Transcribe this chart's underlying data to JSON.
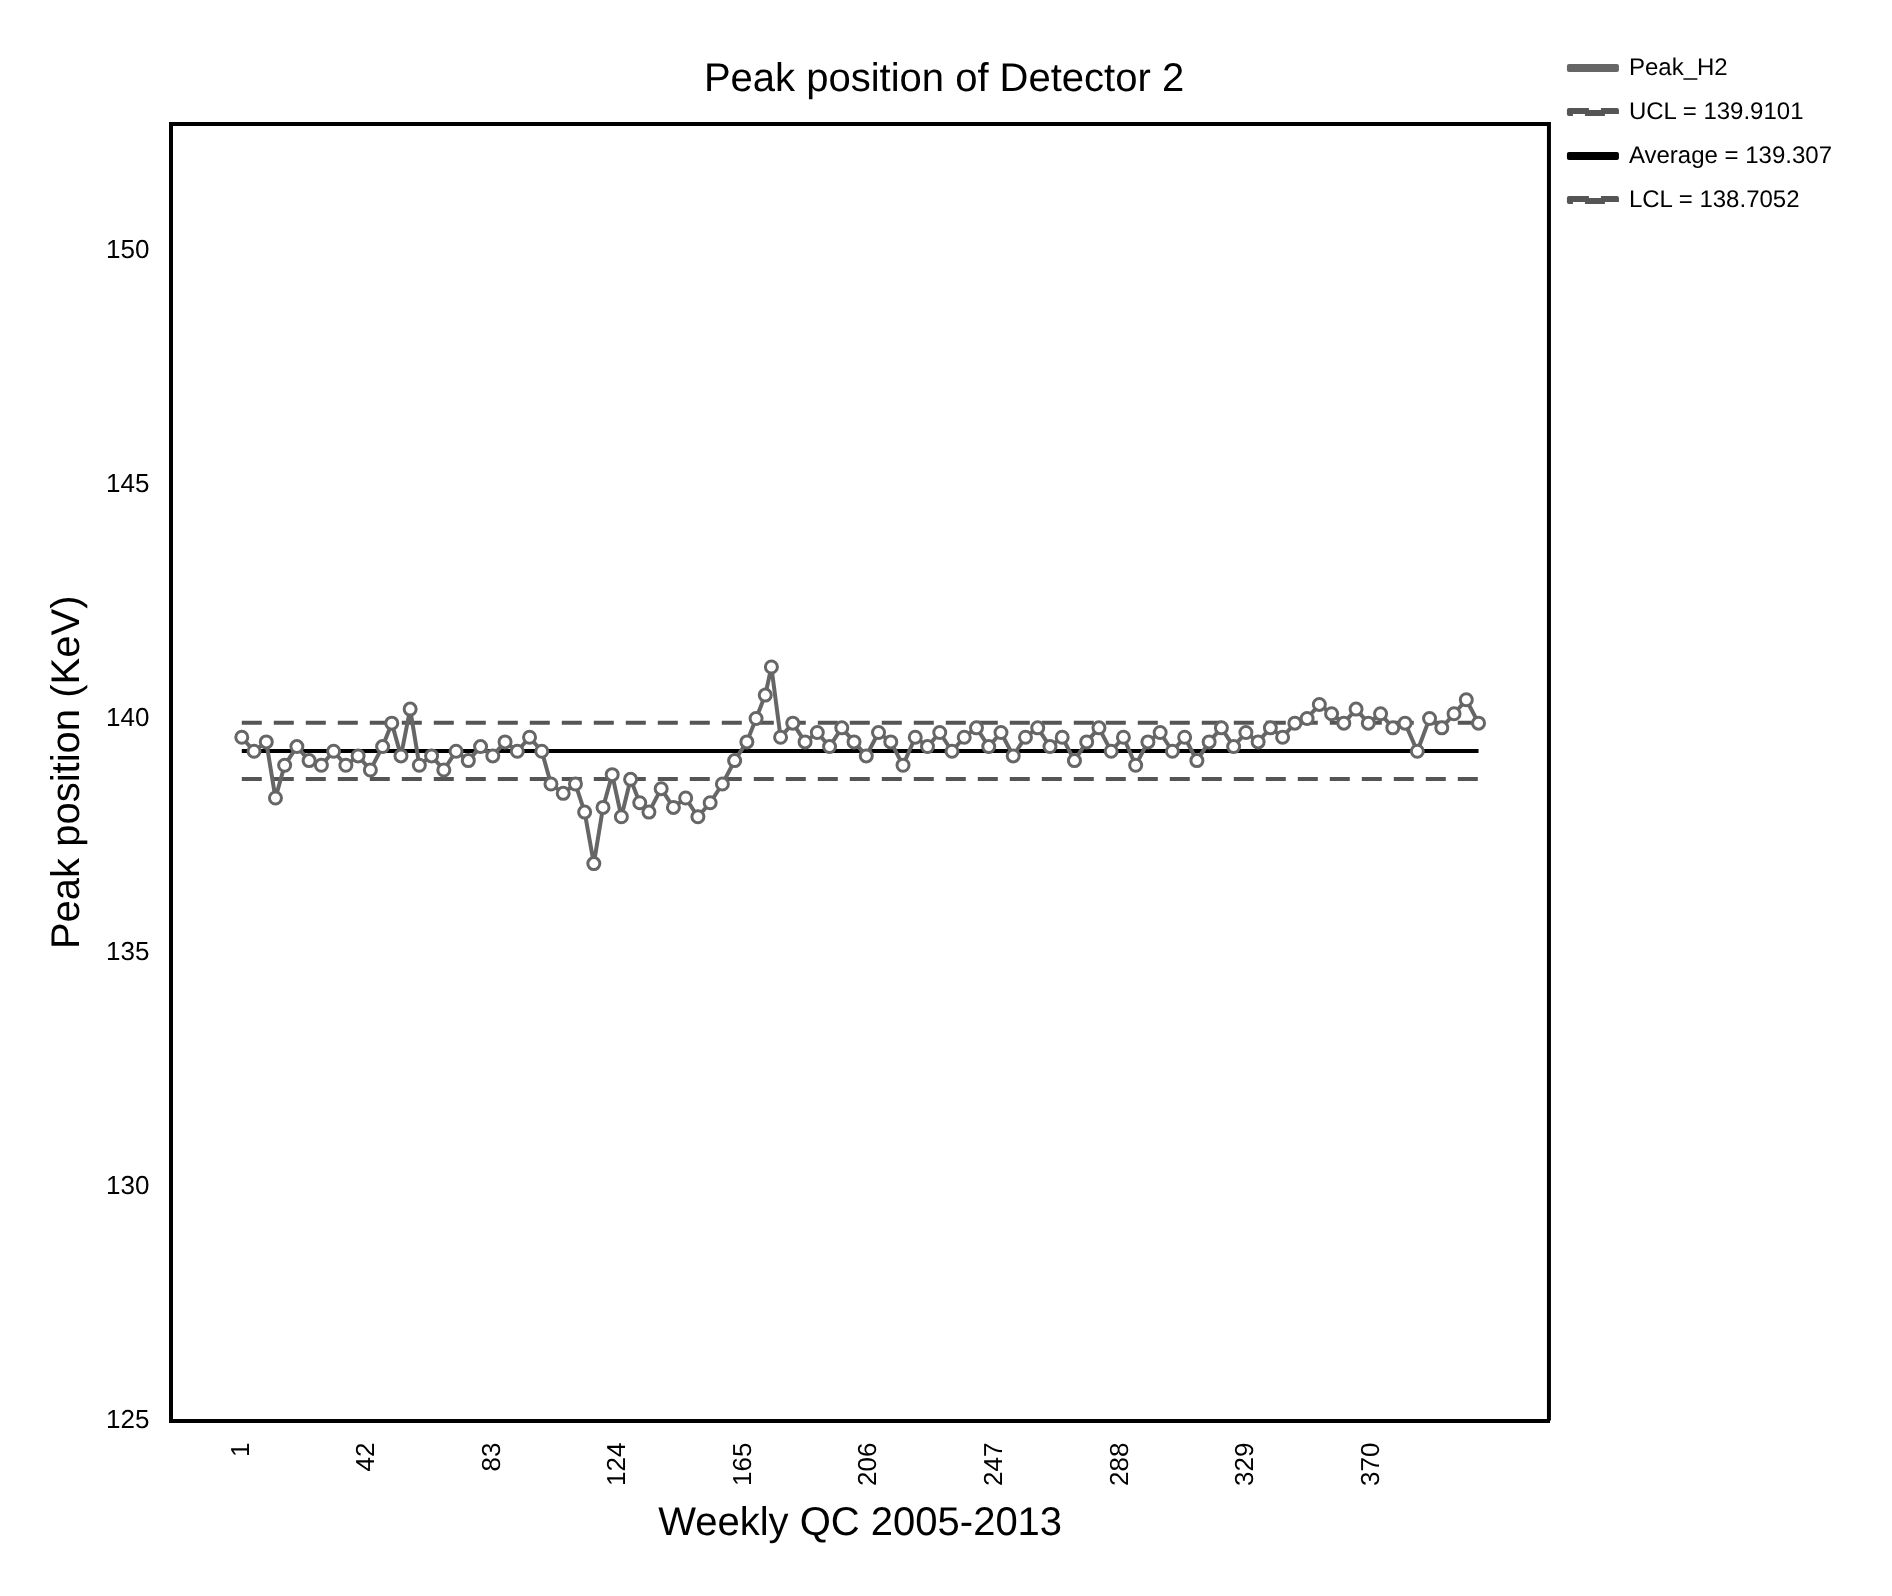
{
  "chart_data": {
    "type": "line",
    "title": "Peak position of Detector 2",
    "xlabel": "Weekly QC 2005-2013",
    "ylabel": "Peak position (KeV)",
    "xlim": [
      -22,
      428
    ],
    "xticks": [
      1,
      42,
      83,
      124,
      165,
      206,
      247,
      288,
      329,
      370
    ],
    "ylim": [
      125,
      152.7
    ],
    "yticks": [
      125,
      130,
      135,
      140,
      145,
      150
    ],
    "grid": false,
    "legend": "top right",
    "series": [
      {
        "name": "Peak_H2",
        "color": "#666666",
        "marker": "circle",
        "line_style": "solid",
        "x": [
          1,
          5,
          9,
          12,
          15,
          19,
          23,
          27,
          31,
          35,
          39,
          43,
          47,
          50,
          53,
          56,
          59,
          63,
          67,
          71,
          75,
          79,
          83,
          87,
          91,
          95,
          99,
          102,
          106,
          110,
          113,
          116,
          119,
          122,
          125,
          128,
          131,
          134,
          138,
          142,
          146,
          150,
          154,
          158,
          162,
          166,
          169,
          172,
          174,
          177,
          181,
          185,
          189,
          193,
          197,
          201,
          205,
          209,
          213,
          217,
          221,
          225,
          229,
          233,
          237,
          241,
          245,
          249,
          253,
          257,
          261,
          265,
          269,
          273,
          277,
          281,
          285,
          289,
          293,
          297,
          301,
          305,
          309,
          313,
          317,
          321,
          325,
          329,
          333,
          337,
          341,
          345,
          349,
          353,
          357,
          361,
          365,
          369,
          373,
          377,
          381,
          385,
          389,
          393,
          397,
          401,
          405
        ],
        "values": [
          139.6,
          139.3,
          139.5,
          138.3,
          139.0,
          139.4,
          139.1,
          139.0,
          139.3,
          139.0,
          139.2,
          138.9,
          139.4,
          139.9,
          139.2,
          140.2,
          139.0,
          139.2,
          138.9,
          139.3,
          139.1,
          139.4,
          139.2,
          139.5,
          139.3,
          139.6,
          139.3,
          138.6,
          138.4,
          138.6,
          138.0,
          136.9,
          138.1,
          138.8,
          137.9,
          138.7,
          138.2,
          138.0,
          138.5,
          138.1,
          138.3,
          137.9,
          138.2,
          138.6,
          139.1,
          139.5,
          140.0,
          140.5,
          141.1,
          139.6,
          139.9,
          139.5,
          139.7,
          139.4,
          139.8,
          139.5,
          139.2,
          139.7,
          139.5,
          139.0,
          139.6,
          139.4,
          139.7,
          139.3,
          139.6,
          139.8,
          139.4,
          139.7,
          139.2,
          139.6,
          139.8,
          139.4,
          139.6,
          139.1,
          139.5,
          139.8,
          139.3,
          139.6,
          139.0,
          139.5,
          139.7,
          139.3,
          139.6,
          139.1,
          139.5,
          139.8,
          139.4,
          139.7,
          139.5,
          139.8,
          139.6,
          139.9,
          140.0,
          140.3,
          140.1,
          139.9,
          140.2,
          139.9,
          140.1,
          139.8,
          139.9,
          139.3,
          140.0,
          139.8,
          140.1,
          140.4,
          139.9
        ]
      },
      {
        "name": "UCL = 139.9101",
        "color": "#555555",
        "marker": "none",
        "line_style": "dashed",
        "x": [
          1,
          405
        ],
        "values": [
          139.9101,
          139.9101
        ]
      },
      {
        "name": "Average = 139.307",
        "color": "#000000",
        "marker": "none",
        "line_style": "solid",
        "x": [
          1,
          405
        ],
        "values": [
          139.307,
          139.307
        ]
      },
      {
        "name": "LCL = 138.7052",
        "color": "#555555",
        "marker": "none",
        "line_style": "dashed",
        "x": [
          1,
          405
        ],
        "values": [
          138.7052,
          138.7052
        ]
      }
    ]
  }
}
